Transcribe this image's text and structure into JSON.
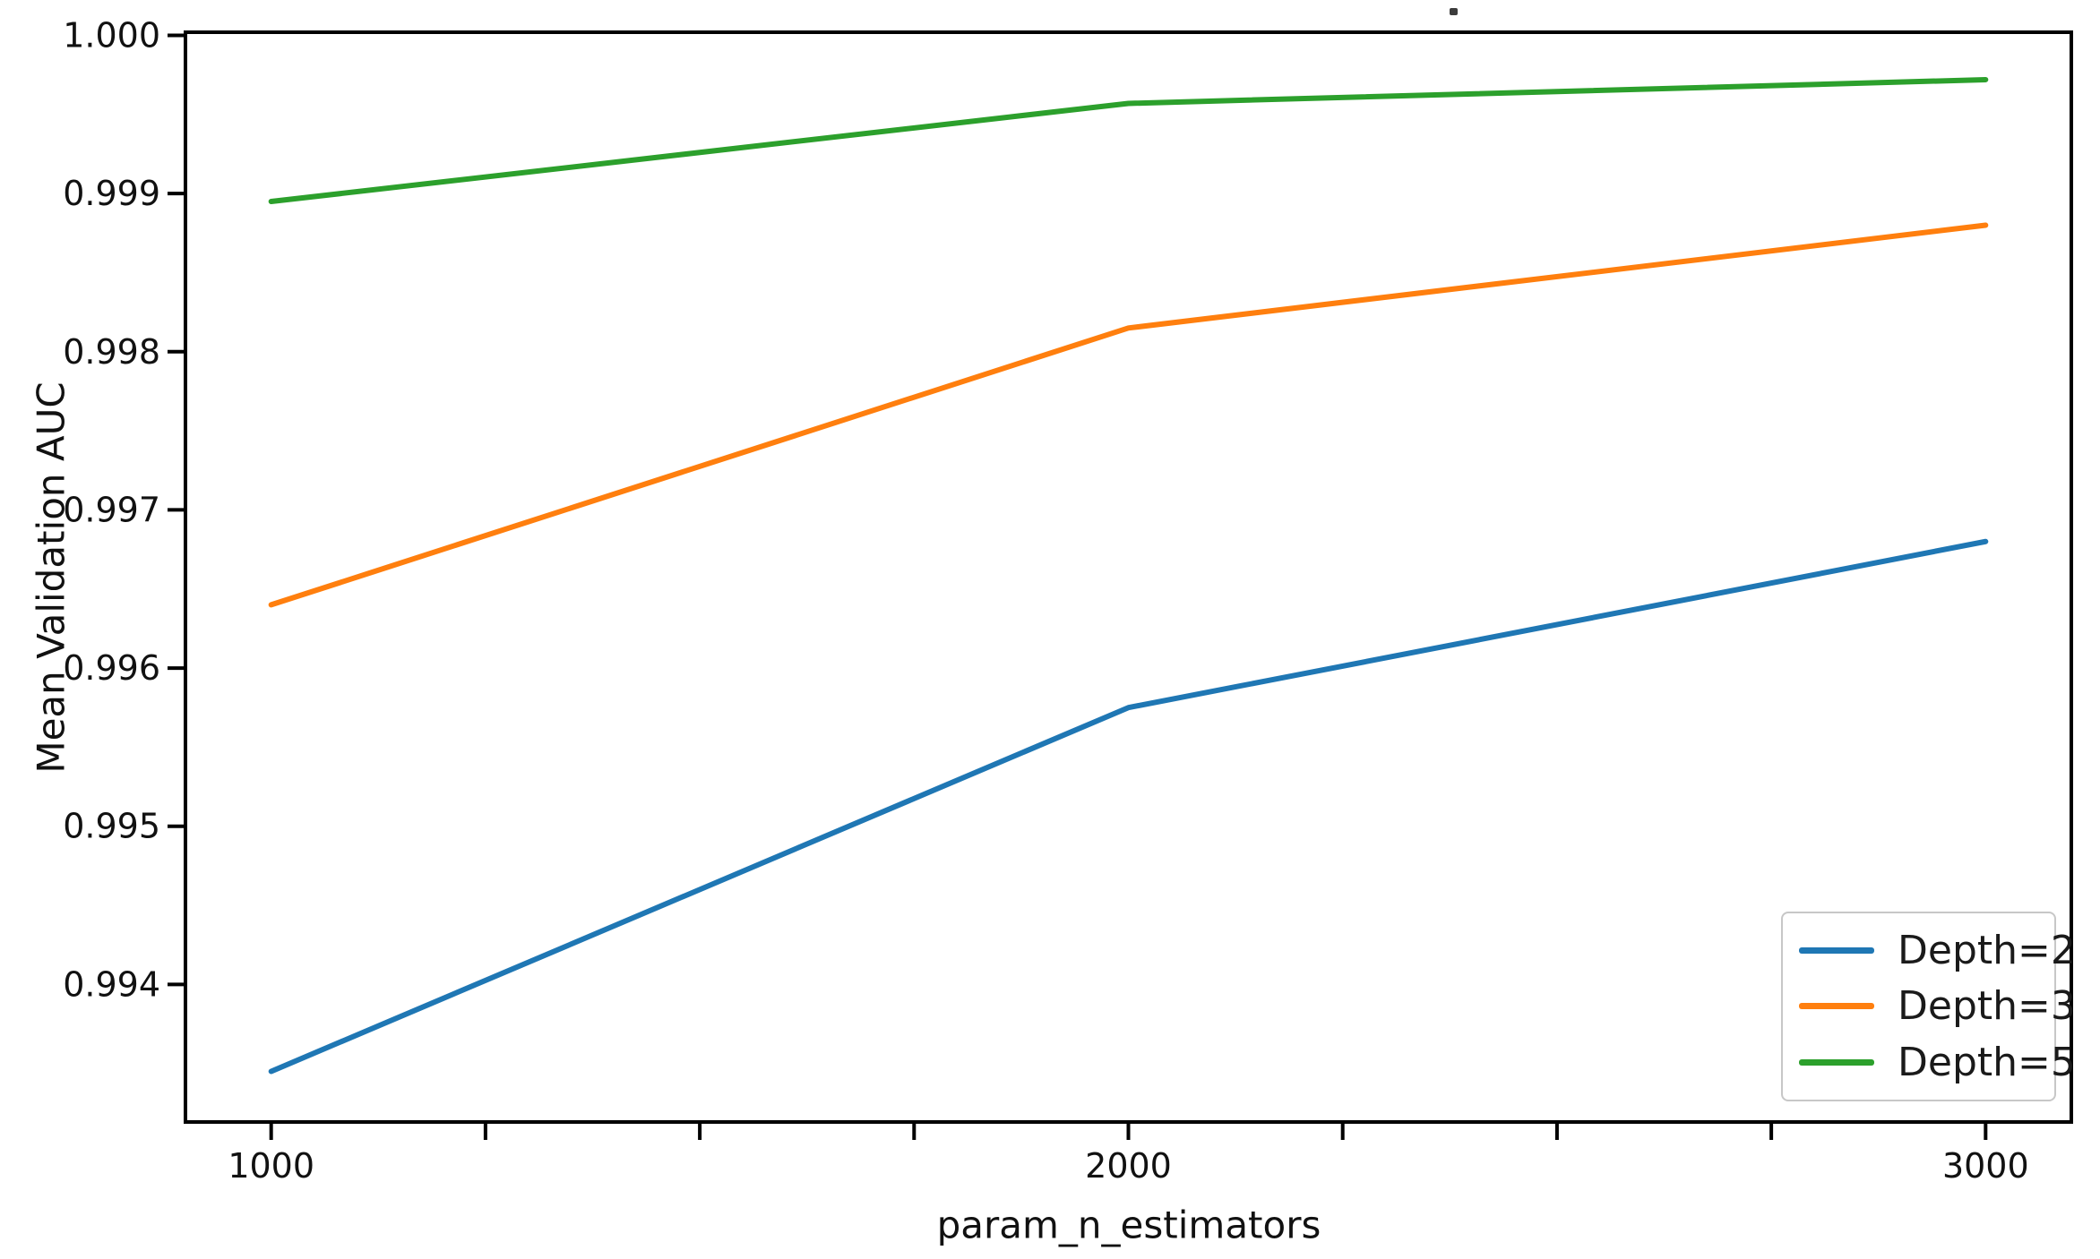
{
  "chart_data": {
    "type": "line",
    "title": "",
    "xlabel": "param_n_estimators",
    "ylabel": "Mean Validation AUC",
    "x": [
      1000,
      2000,
      3000
    ],
    "series": [
      {
        "name": "Depth=2",
        "color": "#1f77b4",
        "values": [
          0.99345,
          0.99575,
          0.9968
        ]
      },
      {
        "name": "Depth=3",
        "color": "#ff7f0e",
        "values": [
          0.9964,
          0.99815,
          0.9988
        ]
      },
      {
        "name": "Depth=5",
        "color": "#2ca02c",
        "values": [
          0.99895,
          0.99957,
          0.99972
        ]
      }
    ],
    "xlim": [
      900,
      3100
    ],
    "ylim": [
      0.99313,
      1.00002
    ],
    "x_major_ticks": [
      1000,
      2000,
      3000
    ],
    "x_tick_labels": [
      "1000",
      "2000",
      "3000"
    ],
    "x_minor_ticks": [
      1250,
      1500,
      1750,
      2250,
      2500,
      2750
    ],
    "y_ticks": [
      0.994,
      0.995,
      0.996,
      0.997,
      0.998,
      0.999,
      1.0
    ],
    "y_tick_labels": [
      "0.994",
      "0.995",
      "0.996",
      "0.997",
      "0.998",
      "0.999",
      "1.000"
    ],
    "grid": false,
    "legend": {
      "position": "lower right",
      "entries": [
        "Depth=2",
        "Depth=3",
        "Depth=5"
      ]
    }
  },
  "colors": {
    "axis": "#000000",
    "tick_text": "#111111",
    "legend_border": "#c7c7c7",
    "background": "#ffffff"
  }
}
